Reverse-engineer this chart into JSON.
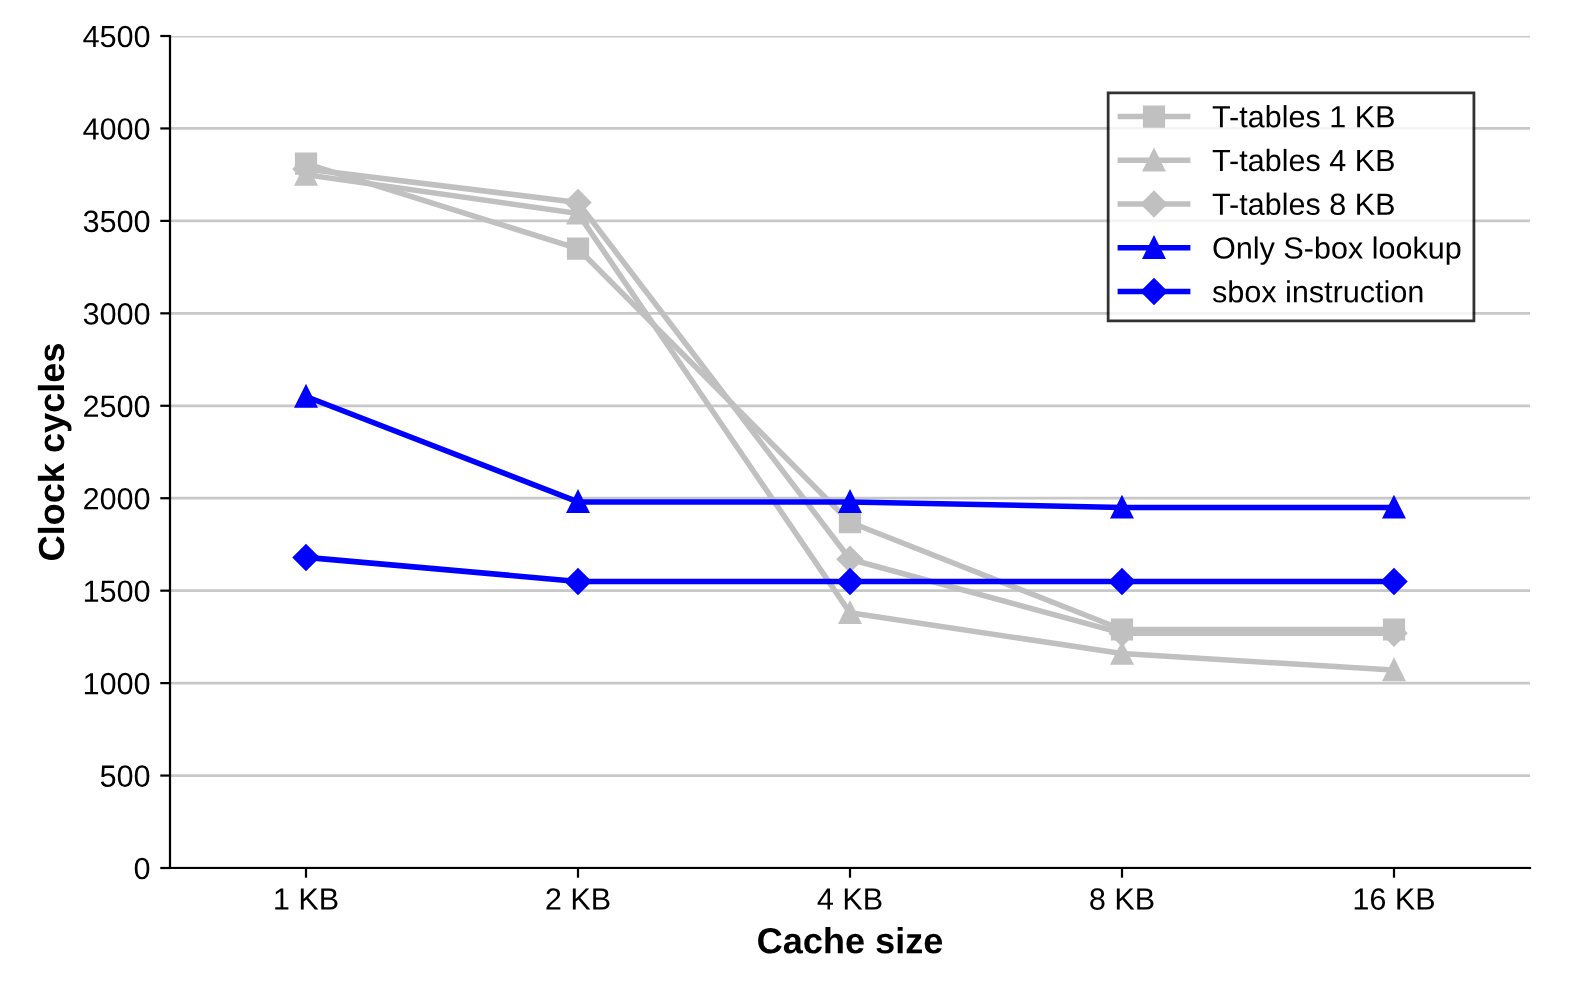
{
  "chart_data": {
    "type": "line",
    "xlabel": "Cache size",
    "ylabel": "Clock cycles",
    "categories": [
      "1 KB",
      "2 KB",
      "4 KB",
      "8 KB",
      "16 KB"
    ],
    "ylim": [
      0,
      4500
    ],
    "yticks": [
      0,
      500,
      1000,
      1500,
      2000,
      2500,
      3000,
      3500,
      4000,
      4500
    ],
    "grid": "y",
    "legend": "top right",
    "series": [
      {
        "name": "T-tables 1 KB",
        "color": "#c0c0c0",
        "marker": "square",
        "values": [
          3810,
          3350,
          1870,
          1290,
          1290
        ]
      },
      {
        "name": "T-tables 4 KB",
        "color": "#c0c0c0",
        "marker": "triangle",
        "values": [
          3750,
          3540,
          1380,
          1160,
          1070
        ]
      },
      {
        "name": "T-tables 8 KB",
        "color": "#c0c0c0",
        "marker": "diamond",
        "values": [
          3780,
          3600,
          1670,
          1270,
          1270
        ]
      },
      {
        "name": "Only S-box lookup",
        "color": "#0000ff",
        "marker": "triangle",
        "values": [
          2550,
          1980,
          1980,
          1950,
          1950
        ]
      },
      {
        "name": "sbox instruction",
        "color": "#0000ff",
        "marker": "diamond",
        "values": [
          1680,
          1550,
          1550,
          1550,
          1550
        ]
      }
    ]
  }
}
